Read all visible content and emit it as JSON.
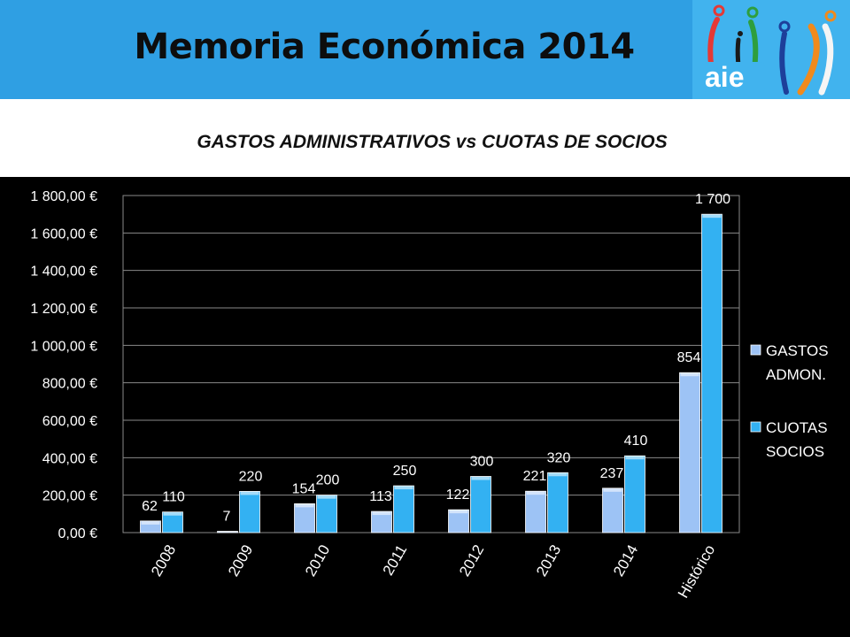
{
  "header": {
    "title": "Memoria Económica 2014",
    "logo_text": "aie"
  },
  "chart_data": {
    "type": "bar",
    "title": "GASTOS ADMINISTRATIVOS vs CUOTAS DE SOCIOS",
    "categories": [
      "2008",
      "2009",
      "2010",
      "2011",
      "2012",
      "2013",
      "2014",
      "Histórico"
    ],
    "series": [
      {
        "name": "GASTOS ADMON.",
        "values": [
          62,
          7,
          154,
          113,
          122,
          221,
          237,
          854
        ],
        "labels": [
          "62",
          "7",
          "154",
          "113",
          "122",
          "221",
          "237",
          "854"
        ],
        "color": "#9dc3f5"
      },
      {
        "name": "CUOTAS SOCIOS",
        "values": [
          110,
          220,
          200,
          250,
          300,
          320,
          410,
          1700
        ],
        "labels": [
          "110",
          "220",
          "200",
          "250",
          "300",
          "320",
          "410",
          "1 700"
        ],
        "color": "#33b1f2"
      }
    ],
    "ylim": [
      0,
      1800
    ],
    "yticks": [
      0,
      200,
      400,
      600,
      800,
      1000,
      1200,
      1400,
      1600,
      1800
    ],
    "ytick_labels": [
      "0,00 €",
      "200,00 €",
      "400,00 €",
      "600,00 €",
      "800,00 €",
      "1 000,00 €",
      "1 200,00 €",
      "1 400,00 €",
      "1 600,00 €",
      "1 800,00 €"
    ],
    "legend_labels": [
      [
        "GASTOS",
        "ADMON."
      ],
      [
        "CUOTAS",
        "SOCIOS"
      ]
    ],
    "legend_position": "right",
    "grid": true,
    "colors": {
      "background": "#000000",
      "grid": "#8a8a8a",
      "text": "#ffffff"
    }
  }
}
